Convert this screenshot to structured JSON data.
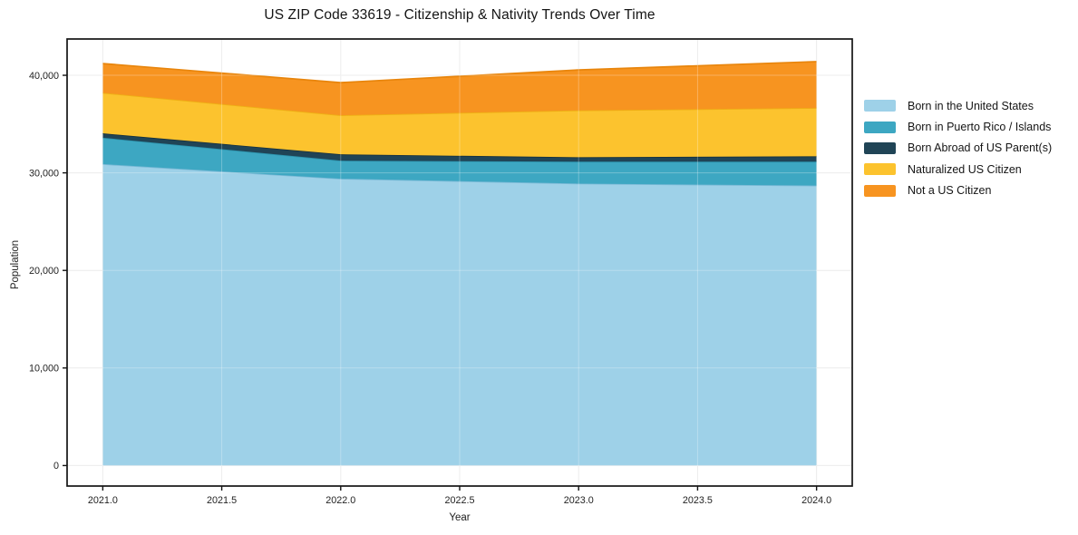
{
  "chart_data": {
    "type": "area",
    "stacked": true,
    "title": "US ZIP Code 33619 - Citizenship & Nativity Trends Over Time",
    "xlabel": "Year",
    "ylabel": "Population",
    "x": [
      2021,
      2022,
      2023,
      2024
    ],
    "series": [
      {
        "name": "Born in the United States",
        "color": "#9ed1e8",
        "edge": "#79b9d6",
        "values": [
          30900,
          29400,
          28900,
          28700
        ]
      },
      {
        "name": "Born in Puerto Rico / Islands",
        "color": "#3da7c2",
        "edge": "#2c93ad",
        "values": [
          2700,
          1850,
          2250,
          2450
        ]
      },
      {
        "name": "Born Abroad of US Parent(s)",
        "color": "#204456",
        "edge": "#16313f",
        "values": [
          450,
          650,
          450,
          550
        ]
      },
      {
        "name": "Naturalized US Citizen",
        "color": "#fcc32e",
        "edge": "#eeb014",
        "values": [
          4150,
          4000,
          4800,
          4950
        ]
      },
      {
        "name": "Not a US Citizen",
        "color": "#f79420",
        "edge": "#e8850c",
        "values": [
          3000,
          3350,
          4150,
          4750
        ]
      }
    ],
    "x_ticks": [
      2021.0,
      2021.5,
      2022.0,
      2022.5,
      2023.0,
      2023.5,
      2024.0
    ],
    "x_tick_labels": [
      "2021.0",
      "2021.5",
      "2022.0",
      "2022.5",
      "2023.0",
      "2023.5",
      "2024.0"
    ],
    "y_ticks": [
      0,
      10000,
      20000,
      30000,
      40000
    ],
    "y_tick_labels": [
      "0",
      "10,000",
      "20,000",
      "30,000",
      "40,000"
    ],
    "xlim": [
      2020.85,
      2024.15
    ],
    "ylim": [
      -2100,
      43720
    ],
    "grid": true,
    "legend_position": "right-outside"
  }
}
